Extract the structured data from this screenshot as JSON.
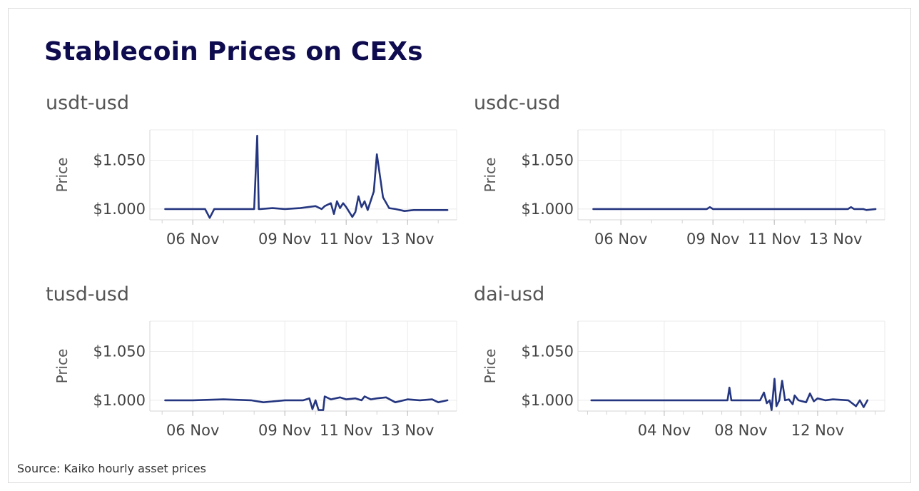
{
  "title": "Stablecoin Prices on CEXs",
  "source": "Source: Kaiko hourly asset prices",
  "colors": {
    "line": "#253680",
    "grid": "#ebebeb",
    "axis": "#d4d4d4"
  },
  "chart_data": [
    {
      "type": "line",
      "title": "usdt-usd",
      "ylabel": "Price",
      "ylim": [
        0.989,
        1.081
      ],
      "yticks": [
        1.0,
        1.05
      ],
      "ytick_labels": [
        "$1.000",
        "$1.050"
      ],
      "xlim": [
        4.6,
        14.6
      ],
      "xticks": [
        6,
        9,
        11,
        13
      ],
      "xtick_labels": [
        "06 Nov",
        "09 Nov",
        "11 Nov",
        "13 Nov"
      ],
      "series": [
        {
          "x": [
            5.1,
            6.0,
            6.4,
            6.55,
            6.7,
            7.0,
            7.7,
            8.0,
            8.1,
            8.15,
            8.2,
            8.6,
            9.0,
            9.5,
            10.0,
            10.2,
            10.3,
            10.5,
            10.6,
            10.7,
            10.8,
            10.9,
            11.0,
            11.2,
            11.3,
            11.4,
            11.5,
            11.6,
            11.7,
            11.9,
            12.0,
            12.2,
            12.4,
            12.6,
            12.9,
            13.2,
            13.5,
            14.0,
            14.3
          ],
          "y": [
            1.0,
            1.0,
            1.0,
            0.991,
            1.0,
            1.0,
            1.0,
            1.0,
            1.075,
            1.0,
            1.0,
            1.001,
            1.0,
            1.001,
            1.003,
            1.0,
            1.003,
            1.006,
            0.995,
            1.008,
            1.001,
            1.006,
            1.002,
            0.992,
            0.997,
            1.013,
            1.002,
            1.008,
            0.999,
            1.018,
            1.056,
            1.012,
            1.001,
            1.0,
            0.998,
            0.999,
            0.999,
            0.999,
            0.999
          ]
        }
      ]
    },
    {
      "type": "line",
      "title": "usdc-usd",
      "ylabel": "Price",
      "ylim": [
        0.989,
        1.081
      ],
      "yticks": [
        1.0,
        1.05
      ],
      "ytick_labels": [
        "$1.000",
        "$1.050"
      ],
      "xlim": [
        4.6,
        14.6
      ],
      "xticks": [
        6,
        9,
        11,
        13
      ],
      "xtick_labels": [
        "06 Nov",
        "09 Nov",
        "11 Nov",
        "13 Nov"
      ],
      "series": [
        {
          "x": [
            5.1,
            6.0,
            7.0,
            8.0,
            8.8,
            8.9,
            9.0,
            10.0,
            11.0,
            12.0,
            13.0,
            13.4,
            13.5,
            13.6,
            13.9,
            14.0,
            14.3
          ],
          "y": [
            1.0,
            1.0,
            1.0,
            1.0,
            1.0,
            1.002,
            1.0,
            1.0,
            1.0,
            1.0,
            1.0,
            1.0,
            1.002,
            1.0,
            1.0,
            0.999,
            1.0
          ]
        }
      ]
    },
    {
      "type": "line",
      "title": "tusd-usd",
      "ylabel": "Price",
      "ylim": [
        0.989,
        1.081
      ],
      "yticks": [
        1.0,
        1.05
      ],
      "ytick_labels": [
        "$1.000",
        "$1.050"
      ],
      "xlim": [
        4.6,
        14.6
      ],
      "xticks": [
        6,
        9,
        11,
        13
      ],
      "xtick_labels": [
        "06 Nov",
        "09 Nov",
        "11 Nov",
        "13 Nov"
      ],
      "series": [
        {
          "x": [
            5.1,
            6.0,
            7.0,
            7.9,
            8.3,
            9.0,
            9.6,
            9.8,
            9.9,
            10.0,
            10.1,
            10.25,
            10.3,
            10.5,
            10.8,
            11.0,
            11.3,
            11.5,
            11.6,
            11.8,
            12.0,
            12.3,
            12.6,
            13.0,
            13.4,
            13.8,
            14.0,
            14.3
          ],
          "y": [
            1.0,
            1.0,
            1.001,
            1.0,
            0.998,
            1.0,
            1.0,
            1.002,
            0.991,
            1.0,
            0.99,
            0.99,
            1.004,
            1.001,
            1.003,
            1.001,
            1.002,
            1.0,
            1.004,
            1.001,
            1.002,
            1.003,
            0.998,
            1.001,
            1.0,
            1.001,
            0.998,
            1.0
          ]
        }
      ]
    },
    {
      "type": "line",
      "title": "dai-usd",
      "ylabel": "Price",
      "ylim": [
        0.989,
        1.081
      ],
      "yticks": [
        1.0,
        1.05
      ],
      "ytick_labels": [
        "$1.000",
        "$1.050"
      ],
      "xlim": [
        -0.5,
        15.5
      ],
      "xticks": [
        4,
        8,
        12
      ],
      "xtick_labels": [
        "04 Nov",
        "08 Nov",
        "12 Nov"
      ],
      "series": [
        {
          "x": [
            0.2,
            2.0,
            4.0,
            6.0,
            7.3,
            7.4,
            7.5,
            8.2,
            9.0,
            9.2,
            9.35,
            9.5,
            9.6,
            9.75,
            9.85,
            10.0,
            10.15,
            10.3,
            10.5,
            10.7,
            10.8,
            11.0,
            11.4,
            11.6,
            11.8,
            12.0,
            12.4,
            12.8,
            13.6,
            14.0,
            14.2,
            14.4,
            14.6
          ],
          "y": [
            1.0,
            1.0,
            1.0,
            1.0,
            1.0,
            1.013,
            1.0,
            1.0,
            1.0,
            1.008,
            0.997,
            1.0,
            0.99,
            1.022,
            0.994,
            1.0,
            1.02,
            1.0,
            1.001,
            0.996,
            1.005,
            1.0,
            0.998,
            1.007,
            0.999,
            1.002,
            1.0,
            1.001,
            1.0,
            0.994,
            1.0,
            0.993,
            1.0
          ]
        }
      ]
    }
  ]
}
